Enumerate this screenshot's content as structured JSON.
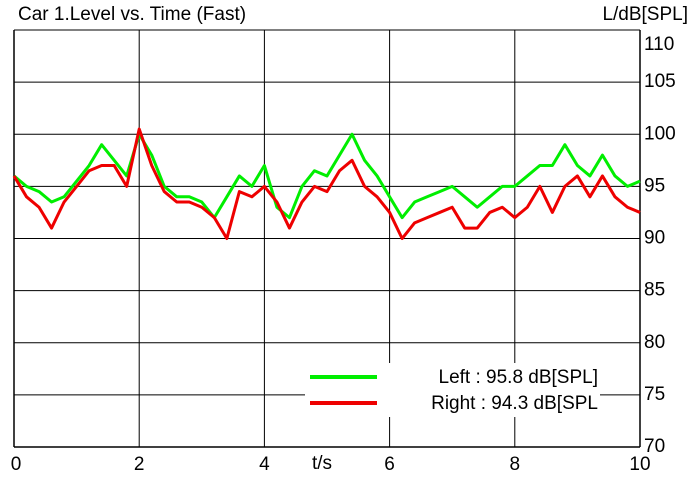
{
  "chart_data": {
    "type": "line",
    "title": "Car 1.Level vs. Time (Fast)",
    "x_label": "t/s",
    "y_label": "L/dB[SPL]",
    "x": [
      0,
      0.2,
      0.4,
      0.6,
      0.8,
      1,
      1.2,
      1.4,
      1.6,
      1.8,
      2,
      2.2,
      2.4,
      2.6,
      2.8,
      3,
      3.2,
      3.4,
      3.6,
      3.8,
      4,
      4.2,
      4.4,
      4.6,
      4.8,
      5,
      5.2,
      5.4,
      5.6,
      5.8,
      6,
      6.2,
      6.4,
      6.6,
      6.8,
      7,
      7.2,
      7.4,
      7.6,
      7.8,
      8,
      8.2,
      8.4,
      8.6,
      8.8,
      9,
      9.2,
      9.4,
      9.6,
      9.8,
      10
    ],
    "series": [
      {
        "name": "Left : 95.8 dB[SPL]",
        "color": "#00ee00",
        "values": [
          96,
          95,
          94.5,
          93.5,
          94,
          95.5,
          97,
          99,
          97.5,
          96,
          100,
          98,
          95,
          94,
          94,
          93.5,
          92,
          94,
          96,
          95,
          97,
          93,
          92,
          95,
          96.5,
          96,
          98,
          100,
          97.5,
          96,
          94,
          92,
          93.5,
          94,
          94.5,
          95,
          94,
          93,
          94,
          95,
          95,
          96,
          97,
          97,
          99,
          97,
          96,
          98,
          96,
          95,
          95.5
        ]
      },
      {
        "name": "Right : 94.3 dB[SPL",
        "color": "#ee0000",
        "values": [
          96,
          94,
          93,
          91,
          93.5,
          95,
          96.5,
          97,
          97,
          95,
          100.5,
          97,
          94.5,
          93.5,
          93.5,
          93,
          92,
          90,
          94.5,
          94,
          95,
          93.5,
          91,
          93.5,
          95,
          94.5,
          96.5,
          97.5,
          95,
          94,
          92.5,
          90,
          91.5,
          92,
          92.5,
          93,
          91,
          91,
          92.5,
          93,
          92,
          93,
          95,
          92.5,
          95,
          96,
          94,
          96,
          94,
          93,
          92.5
        ]
      }
    ],
    "xlim": [
      0,
      10
    ],
    "xticks": [
      0,
      2,
      4,
      6,
      8,
      10
    ],
    "ylim": [
      70,
      110
    ],
    "yticks": [
      70,
      75,
      80,
      85,
      90,
      95,
      100,
      105,
      110
    ],
    "grid": true,
    "legend": "lower right"
  }
}
